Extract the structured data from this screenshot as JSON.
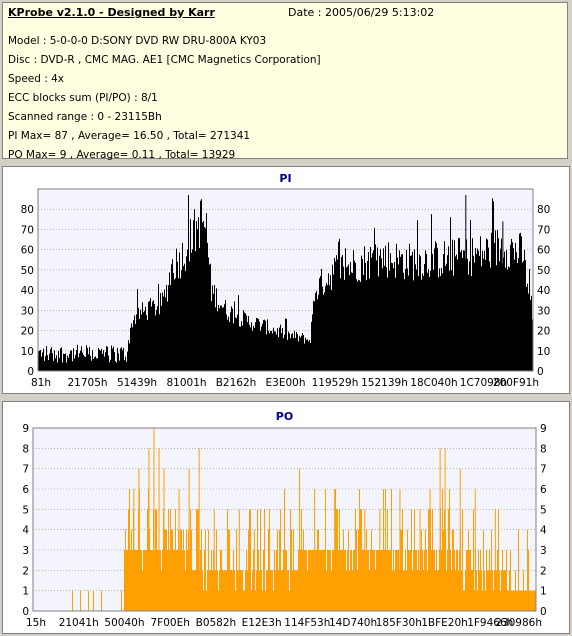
{
  "header": {
    "title": "KProbe v2.1.0 - Designed by Karr",
    "date": "Date : 2005/06/29 5:13:02",
    "lines": [
      "Model : 5-0-0-0 D:SONY    DVD RW DRU-800A  KY03",
      "Disc : DVD-R , CMC MAG. AE1 [CMC Magnetics Corporation]",
      "Speed : 4x",
      "ECC blocks sum (PI/PO) : 8/1",
      "Scanned range : 0 - 23115Bh",
      "PI Max= 87 , Average= 16.50 , Total= 271341",
      "PO Max= 9 , Average= 0.11 , Total= 13929"
    ]
  },
  "colors": {
    "pi": "#000000",
    "po": "#ff9f00",
    "plot_bg": "#f4f4fc",
    "grid": "#8a8aa0",
    "title": "#000080"
  },
  "chart_data": [
    {
      "type": "area",
      "title": "PI",
      "ylim": [
        0,
        90
      ],
      "yticks": [
        0,
        10,
        20,
        30,
        40,
        50,
        60,
        70,
        80
      ],
      "xtick_labels": [
        "81h",
        "21705h",
        "51439h",
        "81001h",
        "B2162h",
        "E3E00h",
        "119529h",
        "152139h",
        "18C040h",
        "1C7098h",
        "200F91h"
      ],
      "grid": true,
      "series": [
        {
          "color": "#000000",
          "x_range": [
            0,
            231158
          ],
          "points": [
            [
              0,
              8
            ],
            [
              5,
              10
            ],
            [
              10,
              9
            ],
            [
              15,
              8
            ],
            [
              18,
              10
            ],
            [
              19,
              25
            ],
            [
              20,
              28
            ],
            [
              22,
              30
            ],
            [
              25,
              33
            ],
            [
              26,
              40
            ],
            [
              27,
              52
            ],
            [
              29,
              56
            ],
            [
              31,
              66
            ],
            [
              33,
              75
            ],
            [
              34,
              70
            ],
            [
              35,
              40
            ],
            [
              38,
              30
            ],
            [
              42,
              25
            ],
            [
              46,
              22
            ],
            [
              50,
              18
            ],
            [
              54,
              16
            ],
            [
              55,
              15
            ],
            [
              56,
              40
            ],
            [
              60,
              50
            ],
            [
              63,
              52
            ],
            [
              66,
              54
            ],
            [
              70,
              56
            ],
            [
              75,
              54
            ],
            [
              80,
              55
            ],
            [
              85,
              56
            ],
            [
              90,
              58
            ],
            [
              94,
              62
            ],
            [
              98,
              58
            ],
            [
              100,
              30
            ]
          ],
          "noise": 0.18
        }
      ]
    },
    {
      "type": "area",
      "title": "PO",
      "ylim": [
        0,
        9
      ],
      "yticks": [
        0,
        1,
        2,
        3,
        4,
        5,
        6,
        7,
        8,
        9
      ],
      "xtick_labels": [
        "15h",
        "21041h",
        "50040h",
        "7F00Eh",
        "B0582h",
        "E12E3h",
        "114F53h",
        "14D740h",
        "185F30h",
        "1BFE20h",
        "1F9466h",
        "230986h"
      ],
      "grid": true,
      "series": [
        {
          "color": "#ff9f00",
          "x_range": [
            0,
            231158
          ],
          "points": [
            [
              0,
              0
            ],
            [
              17,
              0
            ],
            [
              18,
              3
            ],
            [
              25,
              3
            ],
            [
              28,
              3
            ],
            [
              35,
              2
            ],
            [
              40,
              2
            ],
            [
              45,
              2
            ],
            [
              50,
              2
            ],
            [
              55,
              3
            ],
            [
              60,
              3
            ],
            [
              70,
              3
            ],
            [
              80,
              3
            ],
            [
              90,
              2
            ],
            [
              96,
              1
            ],
            [
              100,
              1
            ]
          ],
          "spikes": [
            [
              20,
              6
            ],
            [
              21,
              7
            ],
            [
              23,
              8
            ],
            [
              24,
              9
            ],
            [
              25,
              8
            ],
            [
              26,
              7
            ],
            [
              29,
              6
            ],
            [
              31,
              7
            ],
            [
              33,
              8
            ],
            [
              36,
              5
            ],
            [
              41,
              5
            ],
            [
              44,
              4
            ],
            [
              47,
              5
            ],
            [
              50,
              6
            ],
            [
              53,
              7
            ],
            [
              56,
              6
            ],
            [
              60,
              6
            ],
            [
              66,
              5
            ],
            [
              69,
              5
            ],
            [
              73,
              6
            ],
            [
              77,
              5
            ],
            [
              79,
              6
            ],
            [
              81,
              8
            ],
            [
              82,
              8
            ],
            [
              85,
              7
            ],
            [
              88,
              6
            ],
            [
              92,
              5
            ]
          ],
          "max": 9
        }
      ]
    }
  ]
}
